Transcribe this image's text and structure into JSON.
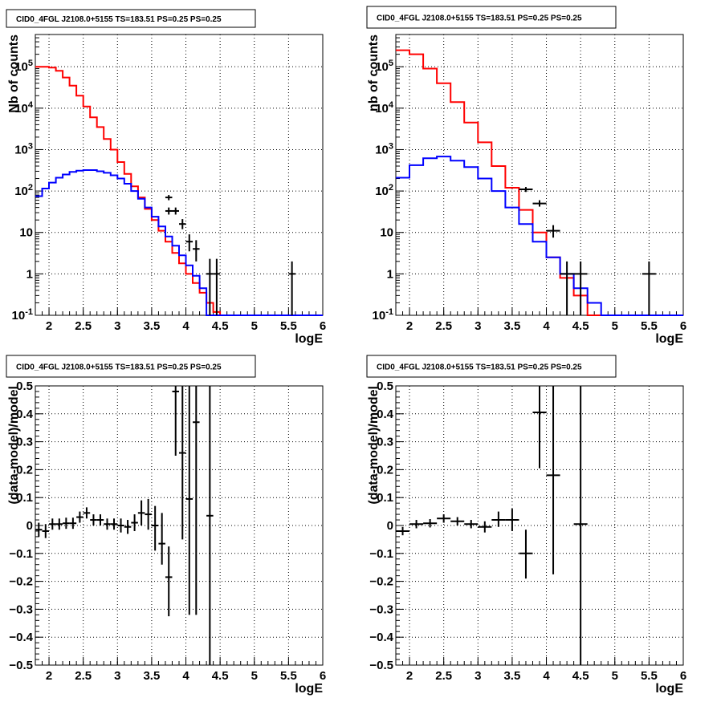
{
  "chart_data": [
    {
      "type": "line",
      "title": "CID0_4FGL J2108.0+5155 TS=183.51 PS=0.25 PS=0.25",
      "xlabel": "logE",
      "ylabel": "Nb of counts",
      "xlim": [
        1.8,
        6.0
      ],
      "ylim": [
        0.1,
        600000
      ],
      "log_y": true,
      "grid": true,
      "x_ticks": [
        "2",
        "2.5",
        "3",
        "3.5",
        "4",
        "4.5",
        "5",
        "5.5",
        "6"
      ],
      "y_ticks": [
        "10^-1",
        "1",
        "10",
        "10^2",
        "10^3",
        "10^4",
        "10^5"
      ],
      "bin_edges": [
        1.8,
        1.9,
        2.0,
        2.1,
        2.2,
        2.3,
        2.4,
        2.5,
        2.6,
        2.7,
        2.8,
        2.9,
        3.0,
        3.1,
        3.2,
        3.3,
        3.4,
        3.5,
        3.6,
        3.7,
        3.8,
        3.9,
        4.0,
        4.1,
        4.2,
        4.3,
        4.4,
        4.5,
        4.6,
        4.7,
        4.8,
        4.9,
        5.0,
        5.1,
        5.2,
        5.3,
        5.4,
        5.5,
        5.6,
        5.7,
        5.8,
        5.9,
        6.0
      ],
      "series": [
        {
          "color": "#ff0000",
          "style": "step",
          "values": [
            100000,
            100000,
            95000,
            80000,
            55000,
            35000,
            20000,
            11000,
            6000,
            3500,
            1800,
            1000,
            500,
            260,
            130,
            70,
            37,
            20,
            11,
            6,
            3.2,
            1.8,
            1.0,
            0.6,
            0.35,
            0.2,
            0.12,
            0.1,
            0.1,
            0.1,
            0.1,
            0.1,
            0.1,
            0.1,
            0.1,
            0.1,
            0.1,
            0.1,
            0.1,
            0.1,
            0.1,
            0.1
          ]
        },
        {
          "color": "#0000ff",
          "style": "step",
          "values": [
            75,
            115,
            160,
            210,
            250,
            290,
            310,
            320,
            320,
            300,
            275,
            240,
            200,
            150,
            100,
            65,
            40,
            24,
            14,
            8,
            4.8,
            2.8,
            1.6,
            0.9,
            0.45,
            0.1,
            0.1,
            0.1,
            0.1,
            0.1,
            0.1,
            0.1,
            0.1,
            0.1,
            0.1,
            0.1,
            0.1,
            0.1,
            0.1,
            0.1,
            0.1,
            0.1
          ]
        },
        {
          "color": "#000000",
          "style": "errorbar",
          "points": [
            {
              "x": 3.75,
              "y": 70,
              "lo": 60,
              "hi": 80,
              "xerr": 0.05
            },
            {
              "x": 3.75,
              "y": 33,
              "lo": 27,
              "hi": 40,
              "xerr": 0.05
            },
            {
              "x": 3.85,
              "y": 33,
              "lo": 27,
              "hi": 40,
              "xerr": 0.05
            },
            {
              "x": 3.95,
              "y": 16,
              "lo": 12,
              "hi": 21,
              "xerr": 0.05
            },
            {
              "x": 4.05,
              "y": 6,
              "lo": 3.5,
              "hi": 9,
              "xerr": 0.05
            },
            {
              "x": 4.15,
              "y": 4,
              "lo": 2,
              "hi": 6.5,
              "xerr": 0.05
            },
            {
              "x": 4.35,
              "y": 1,
              "lo": 0.1,
              "hi": 2.3,
              "xerr": 0.05
            },
            {
              "x": 4.45,
              "y": 1,
              "lo": 0.1,
              "hi": 2.3,
              "xerr": 0.05
            },
            {
              "x": 5.55,
              "y": 1,
              "lo": 0.1,
              "hi": 2.0,
              "xerr": 0.05
            }
          ]
        }
      ]
    },
    {
      "type": "line",
      "title": "CID0_4FGL J2108.0+5155 TS=183.51 PS=0.25 PS=0.25",
      "xlabel": "logE",
      "ylabel": "nb of counts",
      "xlim": [
        1.8,
        6.0
      ],
      "ylim": [
        0.1,
        600000
      ],
      "log_y": true,
      "grid": true,
      "x_ticks": [
        "2",
        "2.5",
        "3",
        "3.5",
        "4",
        "4.5",
        "5",
        "5.5",
        "6"
      ],
      "y_ticks": [
        "10^-1",
        "1",
        "10",
        "10^2",
        "10^3",
        "10^4",
        "10^5"
      ],
      "bin_edges": [
        1.8,
        2.0,
        2.2,
        2.4,
        2.6,
        2.8,
        3.0,
        3.2,
        3.4,
        3.6,
        3.8,
        4.0,
        4.2,
        4.4,
        4.6,
        4.8,
        5.0,
        5.2,
        5.4,
        5.6,
        5.8,
        6.0
      ],
      "series": [
        {
          "color": "#ff0000",
          "style": "step",
          "values": [
            250000,
            200000,
            90000,
            40000,
            14000,
            4500,
            1500,
            400,
            120,
            35,
            10,
            2.5,
            0.8,
            0.3,
            0.1,
            0.1,
            0.1,
            0.1,
            0.1,
            0.1,
            0.1
          ]
        },
        {
          "color": "#0000ff",
          "style": "step",
          "values": [
            210,
            420,
            620,
            680,
            540,
            380,
            200,
            100,
            40,
            16,
            6,
            2.5,
            1.0,
            0.45,
            0.2,
            0.1,
            0.1,
            0.1,
            0.1,
            0.1,
            0.1
          ]
        },
        {
          "color": "#000000",
          "style": "errorbar",
          "points": [
            {
              "x": 3.7,
              "y": 110,
              "lo": 95,
              "hi": 125,
              "xerr": 0.1
            },
            {
              "x": 3.9,
              "y": 50,
              "lo": 42,
              "hi": 60,
              "xerr": 0.1
            },
            {
              "x": 4.1,
              "y": 11,
              "lo": 7.5,
              "hi": 15,
              "xerr": 0.1
            },
            {
              "x": 4.3,
              "y": 1,
              "lo": 0.1,
              "hi": 2.0,
              "xerr": 0.1
            },
            {
              "x": 4.5,
              "y": 1,
              "lo": 0.1,
              "hi": 2.0,
              "xerr": 0.1
            },
            {
              "x": 5.5,
              "y": 1,
              "lo": 0.1,
              "hi": 2.0,
              "xerr": 0.1
            }
          ]
        }
      ]
    },
    {
      "type": "scatter",
      "title": "CID0_4FGL J2108.0+5155 TS=183.51 PS=0.25 PS=0.25",
      "xlabel": "logE",
      "ylabel": "(data-model)/model",
      "xlim": [
        1.8,
        6.0
      ],
      "ylim": [
        -0.5,
        0.5
      ],
      "grid": true,
      "x_ticks": [
        "2",
        "2.5",
        "3",
        "3.5",
        "4",
        "4.5",
        "5",
        "5.5",
        "6"
      ],
      "y_ticks": [
        "−0.5",
        "−0.4",
        "−0.3",
        "−0.2",
        "−0.1",
        "0",
        "0.1",
        "0.2",
        "0.3",
        "0.4",
        "0.5"
      ],
      "series": [
        {
          "color": "#000000",
          "style": "errorbar",
          "points": [
            {
              "x": 1.85,
              "y": -0.015,
              "lo": -0.04,
              "hi": 0.01,
              "xerr": 0.05
            },
            {
              "x": 1.95,
              "y": -0.02,
              "lo": -0.045,
              "hi": 0.005,
              "xerr": 0.05
            },
            {
              "x": 2.05,
              "y": 0.005,
              "lo": -0.015,
              "hi": 0.025,
              "xerr": 0.05
            },
            {
              "x": 2.15,
              "y": 0.005,
              "lo": -0.015,
              "hi": 0.025,
              "xerr": 0.05
            },
            {
              "x": 2.25,
              "y": 0.008,
              "lo": -0.012,
              "hi": 0.028,
              "xerr": 0.05
            },
            {
              "x": 2.35,
              "y": 0.008,
              "lo": -0.012,
              "hi": 0.028,
              "xerr": 0.05
            },
            {
              "x": 2.45,
              "y": 0.03,
              "lo": 0.01,
              "hi": 0.05,
              "xerr": 0.05
            },
            {
              "x": 2.55,
              "y": 0.045,
              "lo": 0.025,
              "hi": 0.065,
              "xerr": 0.05
            },
            {
              "x": 2.65,
              "y": 0.02,
              "lo": 0.0,
              "hi": 0.04,
              "xerr": 0.05
            },
            {
              "x": 2.75,
              "y": 0.02,
              "lo": 0.0,
              "hi": 0.04,
              "xerr": 0.05
            },
            {
              "x": 2.85,
              "y": 0.005,
              "lo": -0.015,
              "hi": 0.025,
              "xerr": 0.05
            },
            {
              "x": 2.95,
              "y": 0.005,
              "lo": -0.015,
              "hi": 0.025,
              "xerr": 0.05
            },
            {
              "x": 3.05,
              "y": 0.0,
              "lo": -0.025,
              "hi": 0.025,
              "xerr": 0.05
            },
            {
              "x": 3.15,
              "y": -0.005,
              "lo": -0.03,
              "hi": 0.02,
              "xerr": 0.05
            },
            {
              "x": 3.25,
              "y": 0.01,
              "lo": -0.02,
              "hi": 0.04,
              "xerr": 0.05
            },
            {
              "x": 3.35,
              "y": 0.045,
              "lo": 0.0,
              "hi": 0.09,
              "xerr": 0.05
            },
            {
              "x": 3.45,
              "y": 0.04,
              "lo": -0.015,
              "hi": 0.095,
              "xerr": 0.05
            },
            {
              "x": 3.55,
              "y": 0.0,
              "lo": -0.09,
              "hi": 0.07,
              "xerr": 0.05
            },
            {
              "x": 3.65,
              "y": -0.065,
              "lo": -0.14,
              "hi": 0.045,
              "xerr": 0.05
            },
            {
              "x": 3.75,
              "y": -0.185,
              "lo": -0.325,
              "hi": -0.075,
              "xerr": 0.05
            },
            {
              "x": 3.85,
              "y": 0.48,
              "lo": 0.25,
              "hi": 0.5,
              "xerr": 0.05
            },
            {
              "x": 3.95,
              "y": 0.26,
              "lo": -0.05,
              "hi": 0.5,
              "xerr": 0.05
            },
            {
              "x": 4.05,
              "y": 0.095,
              "lo": -0.32,
              "hi": 0.5,
              "xerr": 0.05
            },
            {
              "x": 4.15,
              "y": 0.37,
              "lo": -0.32,
              "hi": 0.5,
              "xerr": 0.05
            },
            {
              "x": 4.35,
              "y": 0.035,
              "lo": -0.5,
              "hi": 0.5,
              "xerr": 0.05
            }
          ]
        }
      ]
    },
    {
      "type": "scatter",
      "title": "CID0_4FGL J2108.0+5155 TS=183.51 PS=0.25 PS=0.25",
      "xlabel": "logE",
      "ylabel": "(data-model)/model",
      "xlim": [
        1.8,
        6.0
      ],
      "ylim": [
        -0.5,
        0.5
      ],
      "grid": true,
      "x_ticks": [
        "2",
        "2.5",
        "3",
        "3.5",
        "4",
        "4.5",
        "5",
        "5.5",
        "6"
      ],
      "y_ticks": [
        "−0.5",
        "−0.4",
        "−0.3",
        "−0.2",
        "−0.1",
        "0",
        "0.1",
        "0.2",
        "0.3",
        "0.4",
        "0.5"
      ],
      "series": [
        {
          "color": "#000000",
          "style": "errorbar",
          "points": [
            {
              "x": 1.9,
              "y": -0.02,
              "lo": -0.035,
              "hi": -0.005,
              "xerr": 0.1
            },
            {
              "x": 2.1,
              "y": 0.005,
              "lo": -0.01,
              "hi": 0.02,
              "xerr": 0.1
            },
            {
              "x": 2.3,
              "y": 0.008,
              "lo": -0.007,
              "hi": 0.023,
              "xerr": 0.1
            },
            {
              "x": 2.5,
              "y": 0.025,
              "lo": 0.01,
              "hi": 0.04,
              "xerr": 0.1
            },
            {
              "x": 2.7,
              "y": 0.015,
              "lo": 0.0,
              "hi": 0.03,
              "xerr": 0.1
            },
            {
              "x": 2.9,
              "y": 0.005,
              "lo": -0.01,
              "hi": 0.02,
              "xerr": 0.1
            },
            {
              "x": 3.1,
              "y": -0.005,
              "lo": -0.025,
              "hi": 0.015,
              "xerr": 0.1
            },
            {
              "x": 3.3,
              "y": 0.02,
              "lo": -0.005,
              "hi": 0.05,
              "xerr": 0.1
            },
            {
              "x": 3.5,
              "y": 0.02,
              "lo": -0.02,
              "hi": 0.06,
              "xerr": 0.1
            },
            {
              "x": 3.7,
              "y": -0.1,
              "lo": -0.19,
              "hi": -0.015,
              "xerr": 0.1
            },
            {
              "x": 3.9,
              "y": 0.405,
              "lo": 0.205,
              "hi": 0.5,
              "xerr": 0.1
            },
            {
              "x": 4.1,
              "y": 0.18,
              "lo": -0.175,
              "hi": 0.5,
              "xerr": 0.1
            },
            {
              "x": 4.5,
              "y": 0.005,
              "lo": -0.5,
              "hi": 0.5,
              "xerr": 0.1
            }
          ]
        }
      ]
    }
  ]
}
